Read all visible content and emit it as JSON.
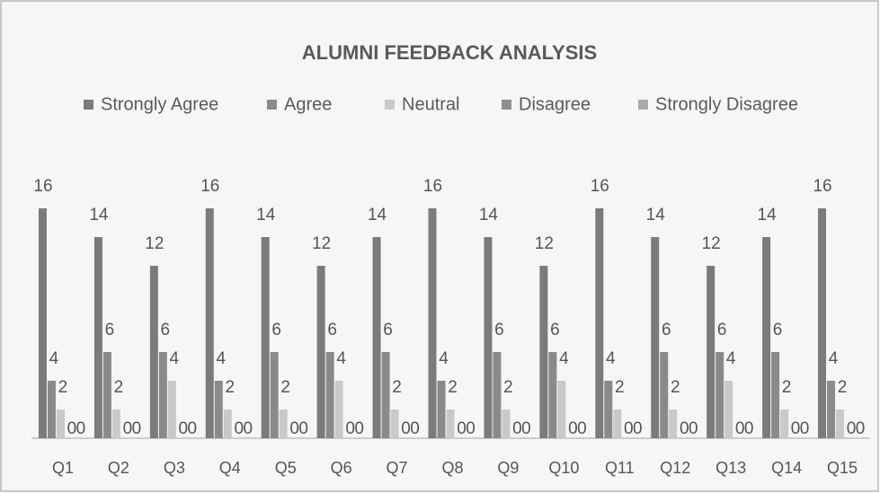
{
  "chart_data": {
    "type": "bar",
    "title": "ALUMNI FEEDBACK ANALYSIS",
    "categories": [
      "Q1",
      "Q2",
      "Q3",
      "Q4",
      "Q5",
      "Q6",
      "Q7",
      "Q8",
      "Q9",
      "Q10",
      "Q11",
      "Q12",
      "Q13",
      "Q14",
      "Q15"
    ],
    "series": [
      {
        "name": "Strongly Agree",
        "color": "#7b7b7b",
        "values": [
          16,
          14,
          12,
          16,
          14,
          12,
          14,
          16,
          14,
          12,
          16,
          14,
          12,
          14,
          16
        ]
      },
      {
        "name": "Agree",
        "color": "#8a8a8a",
        "values": [
          4,
          6,
          6,
          4,
          6,
          6,
          6,
          4,
          6,
          6,
          4,
          6,
          6,
          6,
          4
        ]
      },
      {
        "name": "Neutral",
        "color": "#c9c9c9",
        "values": [
          2,
          2,
          4,
          2,
          2,
          4,
          2,
          2,
          2,
          4,
          2,
          2,
          4,
          2,
          2
        ]
      },
      {
        "name": "Disagree",
        "color": "#8f8f8f",
        "values": [
          0,
          0,
          0,
          0,
          0,
          0,
          0,
          0,
          0,
          0,
          0,
          0,
          0,
          0,
          0
        ]
      },
      {
        "name": "Strongly Disagree",
        "color": "#a9a9a9",
        "values": [
          0,
          0,
          0,
          0,
          0,
          0,
          0,
          0,
          0,
          0,
          0,
          0,
          0,
          0,
          0
        ]
      }
    ],
    "ylim": [
      0,
      18
    ],
    "legend": "top",
    "grid": false
  }
}
